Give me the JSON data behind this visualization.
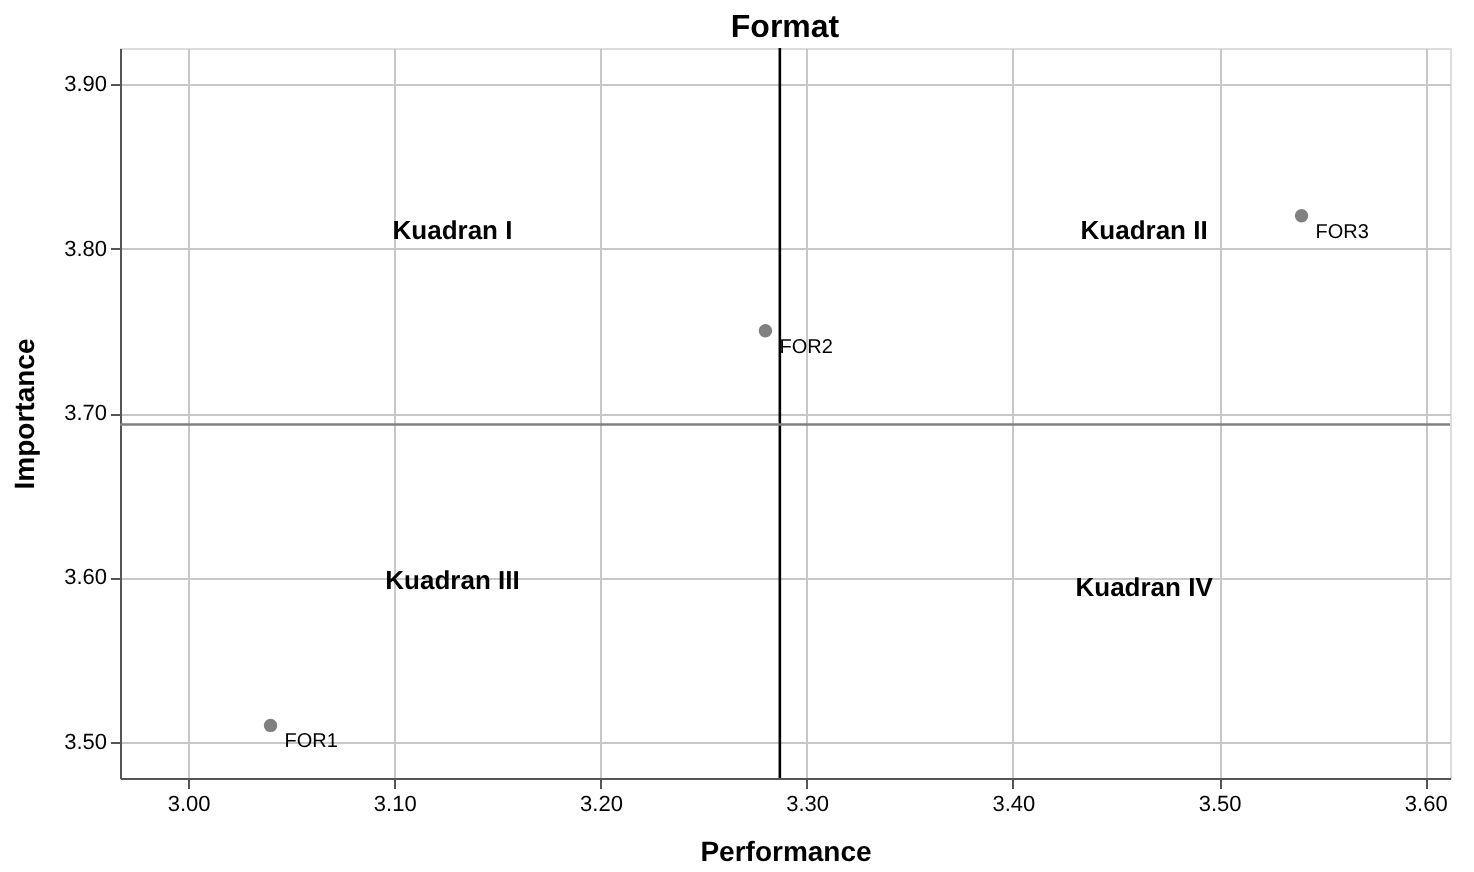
{
  "chart_data": {
    "type": "scatter",
    "title": "Format",
    "xlabel": "Performance",
    "ylabel": "Importance",
    "x": [
      3.04,
      3.28,
      3.54
    ],
    "series": [
      {
        "color": "#808080",
        "values": [
          3.51,
          3.75,
          3.82
        ],
        "value_labels": [
          "FOR1",
          "FOR2",
          "FOR3"
        ]
      }
    ],
    "xlim": [
      2.967,
      3.612
    ],
    "xticks": [
      {
        "value": 3.0,
        "label": "3.00"
      },
      {
        "value": 3.1,
        "label": "3.10"
      },
      {
        "value": 3.2,
        "label": "3.20"
      },
      {
        "value": 3.3,
        "label": "3.30"
      },
      {
        "value": 3.4,
        "label": "3.40"
      },
      {
        "value": 3.5,
        "label": "3.50"
      },
      {
        "value": 3.6,
        "label": "3.60"
      }
    ],
    "ylim": [
      3.478,
      3.922
    ],
    "yticks": [
      {
        "value": 3.5,
        "label": "3.50"
      },
      {
        "value": 3.6,
        "label": "3.60"
      },
      {
        "value": 3.7,
        "label": "3.70"
      },
      {
        "value": 3.8,
        "label": "3.80"
      },
      {
        "value": 3.9,
        "label": "3.90"
      }
    ],
    "ref_lines": [
      {
        "axis": "x",
        "value": 3.287,
        "color": "#000000"
      },
      {
        "axis": "y",
        "value": 3.693,
        "color": "#808080"
      }
    ],
    "annotations": [
      "Kuadran I",
      "Kuadran II",
      "Kuadran III",
      "Kuadran IV"
    ],
    "grid": true,
    "marker": "circle"
  }
}
